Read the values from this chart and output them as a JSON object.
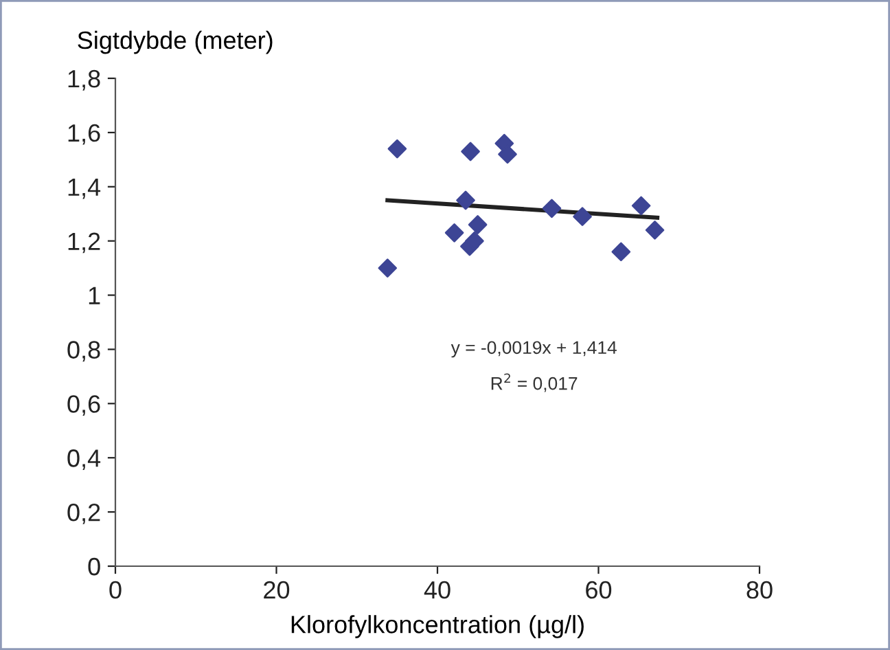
{
  "chart_data": {
    "type": "scatter",
    "xlabel": "Klorofylkoncentration (µg/l)",
    "ylabel": "Sigtdybde (meter)",
    "xlim": [
      0,
      80
    ],
    "xticks": [
      0,
      20,
      40,
      60,
      80
    ],
    "ylim": [
      0,
      1.8
    ],
    "yticks": [
      0,
      {
        "value": 0.2,
        "label": "0,2"
      },
      {
        "value": 0.4,
        "label": "0,4"
      },
      {
        "value": 0.6,
        "label": "0,6"
      },
      {
        "value": 0.8,
        "label": "0,8"
      },
      1,
      {
        "value": 1.2,
        "label": "1,2"
      },
      {
        "value": 1.4,
        "label": "1,4"
      },
      {
        "value": 1.6,
        "label": "1,6"
      },
      {
        "value": 1.8,
        "label": "1,8"
      }
    ],
    "grid": false,
    "legend": false,
    "marker": "diamond",
    "series": [
      {
        "color": "#3d4595",
        "x": [
          33.8,
          35.0,
          44.1,
          48.3,
          48.7,
          43.5,
          45.0,
          42.1,
          44.0,
          44.6,
          54.2,
          58.0,
          65.3,
          67.0,
          62.8
        ],
        "values": [
          1.1,
          1.54,
          1.53,
          1.56,
          1.52,
          1.35,
          1.26,
          1.23,
          1.18,
          1.2,
          1.32,
          1.29,
          1.33,
          1.24,
          1.16
        ]
      },
      {
        "type": "line",
        "color": "#222222",
        "line_style": "solid",
        "marker": "none",
        "x": [
          33.8,
          67.3
        ],
        "values": [
          1.35,
          1.286
        ]
      }
    ],
    "annotations": [
      "y = -0,0019x + 1,414",
      "R$^{2}$ = 0,017"
    ]
  }
}
